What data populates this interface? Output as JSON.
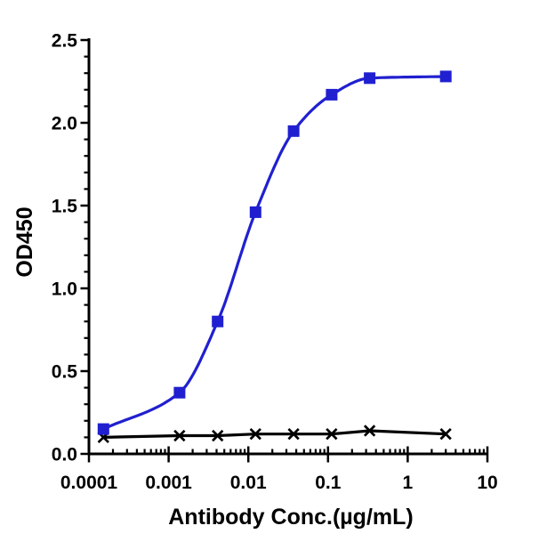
{
  "figure": {
    "background": "#ffffff",
    "axis_color": "#000000"
  },
  "chart_data": {
    "type": "line",
    "title": "",
    "xlabel": "Antibody Conc.(µg/mL)",
    "ylabel": "OD450",
    "x_scale": "log10",
    "xlim": [
      0.0001,
      10
    ],
    "ylim": [
      0.0,
      2.5
    ],
    "grid": false,
    "legend": "none",
    "x_tick_values": [
      0.0001,
      0.001,
      0.01,
      0.1,
      1,
      10
    ],
    "x_tick_labels": [
      "0.0001",
      "0.001",
      "0.01",
      "0.1",
      "1",
      "10"
    ],
    "y_tick_values": [
      0.0,
      0.5,
      1.0,
      1.5,
      2.0,
      2.5
    ],
    "y_tick_labels": [
      "0.0",
      "0.5",
      "1.0",
      "1.5",
      "2.0",
      "2.5"
    ],
    "y_minor_step": 0.1,
    "series": [
      {
        "name": "blue-squares-binding-curve",
        "marker": "filled-square",
        "line": "smooth-sigmoid",
        "color": "#2020D0",
        "x": [
          0.000152,
          0.00137,
          0.00412,
          0.0123,
          0.037,
          0.111,
          0.333,
          3
        ],
        "y": [
          0.15,
          0.37,
          0.8,
          1.46,
          1.95,
          2.17,
          2.27,
          2.28
        ]
      },
      {
        "name": "black-crosses-control",
        "marker": "x-cross",
        "line": "straight",
        "color": "#000000",
        "x": [
          0.000152,
          0.00137,
          0.00412,
          0.0123,
          0.037,
          0.111,
          0.333,
          3
        ],
        "y": [
          0.1,
          0.11,
          0.11,
          0.12,
          0.12,
          0.12,
          0.14,
          0.12
        ]
      }
    ]
  }
}
